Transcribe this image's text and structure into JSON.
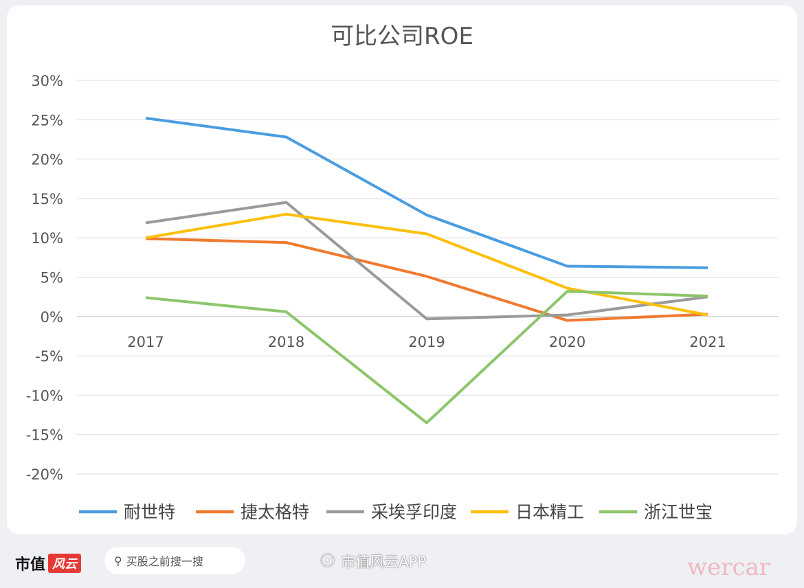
{
  "chart_data": {
    "type": "line",
    "title": "可比公司ROE",
    "categories": [
      "2017",
      "2018",
      "2019",
      "2020",
      "2021"
    ],
    "ylim": [
      -20,
      30
    ],
    "yticks": [
      30,
      25,
      20,
      15,
      10,
      5,
      0,
      -5,
      -10,
      -15,
      -20
    ],
    "ytick_labels": [
      "30%",
      "25%",
      "20%",
      "15%",
      "10%",
      "5%",
      "0%",
      "-5%",
      "-10%",
      "-15%",
      "-20%"
    ],
    "grid": true,
    "legend_position": "bottom",
    "series": [
      {
        "name": "耐世特",
        "color": "#4a9de0",
        "values": [
          25.2,
          22.8,
          12.9,
          6.4,
          6.2
        ]
      },
      {
        "name": "捷太格特",
        "color": "#ef7a2e",
        "values": [
          9.9,
          9.4,
          5.1,
          -0.5,
          0.3
        ]
      },
      {
        "name": "采埃孚印度",
        "color": "#9a9a9a",
        "values": [
          11.9,
          14.5,
          -0.3,
          0.2,
          2.5
        ]
      },
      {
        "name": "日本精工",
        "color": "#fcbf0a",
        "values": [
          10.0,
          13.0,
          10.5,
          3.6,
          0.2
        ]
      },
      {
        "name": "浙江世宝",
        "color": "#8dc56b",
        "values": [
          2.4,
          0.6,
          -13.5,
          3.2,
          2.6
        ]
      }
    ]
  },
  "footer": {
    "brand_text": "市值",
    "brand_logo": "风云",
    "search_placeholder": "买股之前搜一搜",
    "weibo_label": "市值风云APP",
    "watermark": "wercar"
  }
}
